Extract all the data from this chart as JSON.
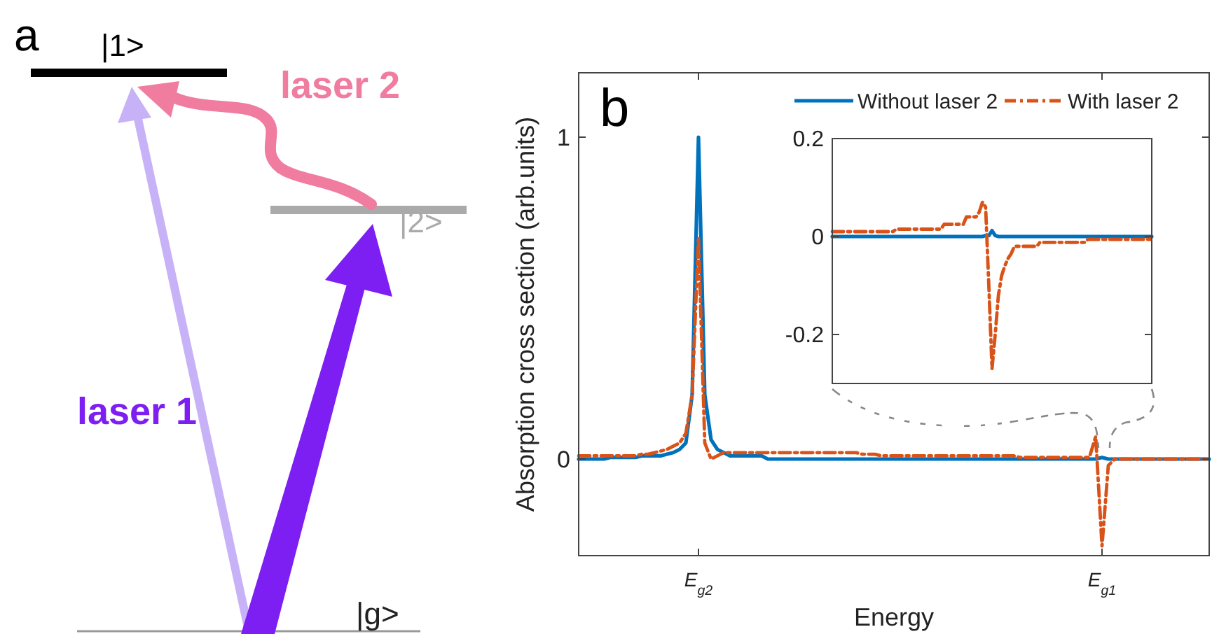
{
  "chart_data": [
    {
      "type": "other",
      "title": "a",
      "annotations": [
        "|1>",
        "laser 2",
        "|2>",
        "laser 1",
        "|g>"
      ]
    },
    {
      "type": "line",
      "title": "b",
      "xlabel": "Energy",
      "ylabel": "Absorption cross section (arb.units)",
      "ylim": [
        -0.3,
        1.2
      ],
      "yticks": [
        0,
        1
      ],
      "legend": "top right",
      "grid": false,
      "categories": [
        null,
        null,
        null,
        null,
        null,
        null,
        null,
        null,
        null,
        null,
        null,
        null,
        null,
        null,
        null,
        null,
        null,
        null,
        null,
        "E$_{g2}$",
        null,
        null,
        null,
        null,
        null,
        null,
        null,
        null,
        null,
        null,
        null,
        null,
        null,
        null,
        null,
        null,
        null,
        null,
        null,
        null,
        null,
        null,
        null,
        null,
        null,
        null,
        null,
        null,
        null,
        null,
        null,
        null,
        null,
        null,
        null,
        null,
        null,
        null,
        null,
        null,
        null,
        null,
        null,
        null,
        null,
        null,
        null,
        null,
        null,
        null,
        null,
        null,
        null,
        null,
        null,
        null,
        null,
        null,
        null,
        null,
        null,
        null,
        null,
        "E$_{g1}$",
        null,
        null,
        null,
        null,
        null,
        null,
        null,
        null,
        null,
        null,
        null,
        null,
        null,
        null,
        null,
        null,
        null
      ],
      "series": [
        {
          "name": "Without laser 2",
          "color": "#0072bd",
          "line_style": "solid",
          "values": [
            0,
            0,
            0,
            0,
            0,
            0.005,
            0.005,
            0.005,
            0.005,
            0.005,
            0.01,
            0.01,
            0.01,
            0.01,
            0.015,
            0.02,
            0.03,
            0.05,
            0.2,
            1,
            0.2,
            0.06,
            0.03,
            0.02,
            0.01,
            0.01,
            0.01,
            0.01,
            0.01,
            0.01,
            0,
            0,
            0,
            0,
            0,
            0,
            0,
            0,
            0,
            0,
            0,
            0,
            0,
            0,
            0,
            0,
            0,
            0,
            0,
            0,
            0,
            0,
            0,
            0,
            0,
            0,
            0,
            0,
            0,
            0,
            0,
            0,
            0,
            0,
            0,
            0,
            0,
            0,
            0,
            0,
            0,
            0,
            0,
            0,
            0,
            0,
            0,
            0,
            0,
            0,
            0,
            0,
            0,
            0.005,
            0,
            0,
            0,
            0,
            0,
            0,
            0,
            0,
            0,
            0,
            0,
            0,
            0,
            0,
            0,
            0,
            0
          ]
        },
        {
          "name": "With laser 2",
          "color": "#d95319",
          "line_style": "dashed",
          "values": [
            0.01,
            0.01,
            0.01,
            0.01,
            0.01,
            0.01,
            0.01,
            0.01,
            0.01,
            0.01,
            0.015,
            0.015,
            0.02,
            0.025,
            0.03,
            0.04,
            0.05,
            0.08,
            0.2,
            0.69,
            0.05,
            0,
            0.01,
            0.02,
            0.02,
            0.02,
            0.02,
            0.02,
            0.02,
            0.02,
            0.02,
            0.02,
            0.02,
            0.02,
            0.02,
            0.02,
            0.02,
            0.02,
            0.02,
            0.02,
            0.02,
            0.02,
            0.02,
            0.02,
            0.02,
            0.015,
            0.015,
            0.015,
            0.01,
            0.01,
            0.01,
            0.01,
            0.01,
            0.01,
            0.01,
            0.01,
            0.01,
            0.01,
            0.01,
            0.01,
            0.01,
            0.01,
            0.01,
            0.01,
            0.01,
            0.01,
            0.01,
            0.01,
            0.01,
            0.01,
            0.005,
            0.005,
            0.005,
            0.005,
            0.005,
            0.005,
            0.005,
            0.005,
            0.005,
            0.005,
            0.005,
            0.005,
            0.07,
            -0.27,
            -0.02,
            0,
            0,
            0,
            0,
            0,
            0,
            0,
            0,
            0,
            0,
            0,
            0,
            0,
            0,
            0,
            0
          ]
        }
      ]
    },
    {
      "type": "line",
      "ylim": [
        -0.3,
        0.2
      ],
      "yticks": [
        -0.2,
        0,
        0.2
      ],
      "tick_labels": "y",
      "grid": false,
      "categories": [
        null,
        null,
        null,
        null,
        null,
        null,
        null,
        null,
        null,
        null,
        null,
        null,
        null,
        null,
        null,
        null,
        null,
        null,
        null,
        null,
        null,
        null,
        null,
        null,
        null,
        null,
        null,
        null,
        null,
        null,
        null,
        null,
        null,
        null,
        null,
        null,
        null,
        null,
        null,
        null,
        null,
        null,
        null,
        null,
        null,
        null,
        null,
        null,
        null,
        null,
        null,
        null,
        null,
        null,
        null,
        null,
        null,
        null,
        null,
        null,
        null,
        null,
        null,
        null,
        null,
        null,
        null,
        null,
        null,
        null,
        null,
        null,
        null,
        null,
        null,
        null,
        null,
        null,
        null,
        null,
        null,
        null,
        null,
        null,
        null,
        null,
        null,
        null,
        null,
        null,
        null,
        null,
        null,
        null,
        null,
        null,
        null,
        null,
        null,
        null,
        null
      ],
      "series": [
        {
          "color": "#0072bd",
          "line_style": "solid",
          "values": [
            0,
            0,
            0,
            0,
            0,
            0,
            0,
            0,
            0,
            0,
            0,
            0,
            0,
            0,
            0,
            0,
            0,
            0,
            0,
            0,
            0,
            0,
            0,
            0,
            0,
            0,
            0,
            0,
            0,
            0,
            0,
            0,
            0,
            0,
            0,
            0,
            0,
            0,
            0,
            0,
            0,
            0,
            0,
            0,
            0,
            0,
            0,
            0,
            0.002,
            0.002,
            0.012,
            0.002,
            0,
            0,
            0,
            0,
            0,
            0,
            0,
            0,
            0,
            0,
            0,
            0,
            0,
            0,
            0,
            0,
            0,
            0,
            0,
            0,
            0,
            0,
            0,
            0,
            0,
            0,
            0,
            0,
            0,
            0,
            0,
            0,
            0,
            0,
            0,
            0,
            0,
            0,
            0,
            0,
            0,
            0,
            0,
            0,
            0,
            0,
            0,
            0,
            0
          ]
        },
        {
          "color": "#d95319",
          "line_style": "dashed",
          "values": [
            0.01,
            0.01,
            0.01,
            0.01,
            0.01,
            0.01,
            0.01,
            0.01,
            0.01,
            0.01,
            0.01,
            0.01,
            0.01,
            0.01,
            0.01,
            0.01,
            0.01,
            0.01,
            0.01,
            0.01,
            0.015,
            0.015,
            0.015,
            0.015,
            0.015,
            0.015,
            0.015,
            0.015,
            0.015,
            0.015,
            0.015,
            0.015,
            0.015,
            0.015,
            0.015,
            0.025,
            0.025,
            0.025,
            0.025,
            0.025,
            0.025,
            0.025,
            0.04,
            0.04,
            0.04,
            0.04,
            0.05,
            0.07,
            0.06,
            -0.1,
            -0.27,
            -0.2,
            -0.12,
            -0.08,
            -0.06,
            -0.045,
            -0.035,
            -0.02,
            -0.02,
            -0.02,
            -0.02,
            -0.02,
            -0.02,
            -0.02,
            -0.02,
            -0.012,
            -0.012,
            -0.012,
            -0.012,
            -0.012,
            -0.012,
            -0.012,
            -0.012,
            -0.012,
            -0.012,
            -0.012,
            -0.012,
            -0.012,
            -0.012,
            -0.012,
            -0.006,
            -0.006,
            -0.006,
            -0.006,
            -0.006,
            -0.006,
            -0.006,
            -0.006,
            -0.006,
            -0.006,
            -0.006,
            -0.006,
            -0.006,
            -0.006,
            -0.006,
            -0.006,
            -0.006,
            -0.006,
            -0.006,
            -0.006,
            -0.006
          ]
        }
      ]
    }
  ]
}
